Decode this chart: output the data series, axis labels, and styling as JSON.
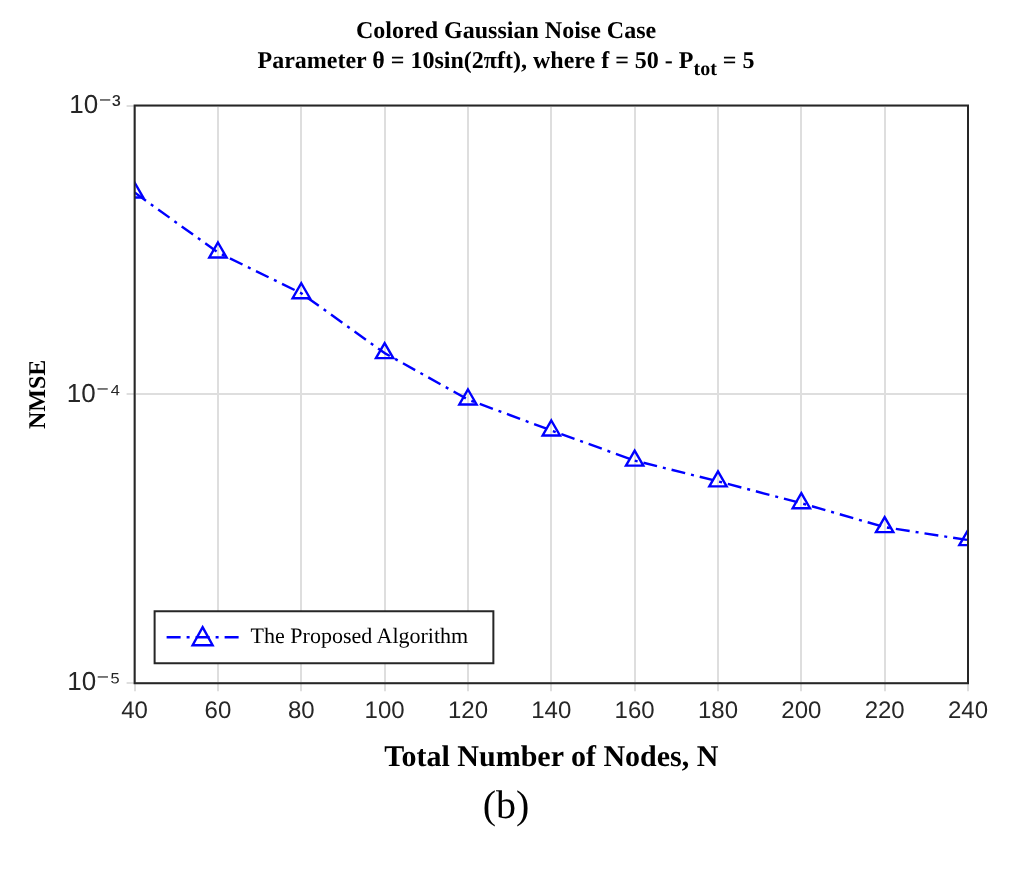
{
  "chart_data": {
    "type": "line",
    "title": "Colored Gaussian Noise Case",
    "subtitle": "Parameter θ = 10sin(2πft), where f = 50 - P$_{tot}$ = 5",
    "xlabel": "Total Number of Nodes, N",
    "ylabel": "NMSE",
    "x": [
      40,
      60,
      80,
      100,
      120,
      140,
      160,
      180,
      200,
      220,
      240
    ],
    "series": [
      {
        "name": "The Proposed Algorithm",
        "color": "#0000ff",
        "values": [
          0.0005,
          0.00031,
          0.000224,
          0.000139,
          9.6e-05,
          7.5e-05,
          5.9e-05,
          5e-05,
          4.2e-05,
          3.47e-05,
          3.13e-05
        ]
      }
    ],
    "xlim": [
      40,
      240
    ],
    "xticks": [
      40,
      60,
      80,
      100,
      120,
      140,
      160,
      180,
      200,
      220,
      240
    ],
    "ylim": [
      1e-05,
      0.001
    ],
    "yticks": [
      {
        "value": 1e-05,
        "label": "10⁻⁵"
      },
      {
        "value": 0.0001,
        "label": "10⁻⁴"
      },
      {
        "value": 0.001,
        "label": "10⁻³"
      }
    ],
    "log": "y",
    "grid": true,
    "legend": "bottom left",
    "marker": "triangle",
    "line_style": "dashed",
    "annotations": [
      "(b)"
    ]
  }
}
